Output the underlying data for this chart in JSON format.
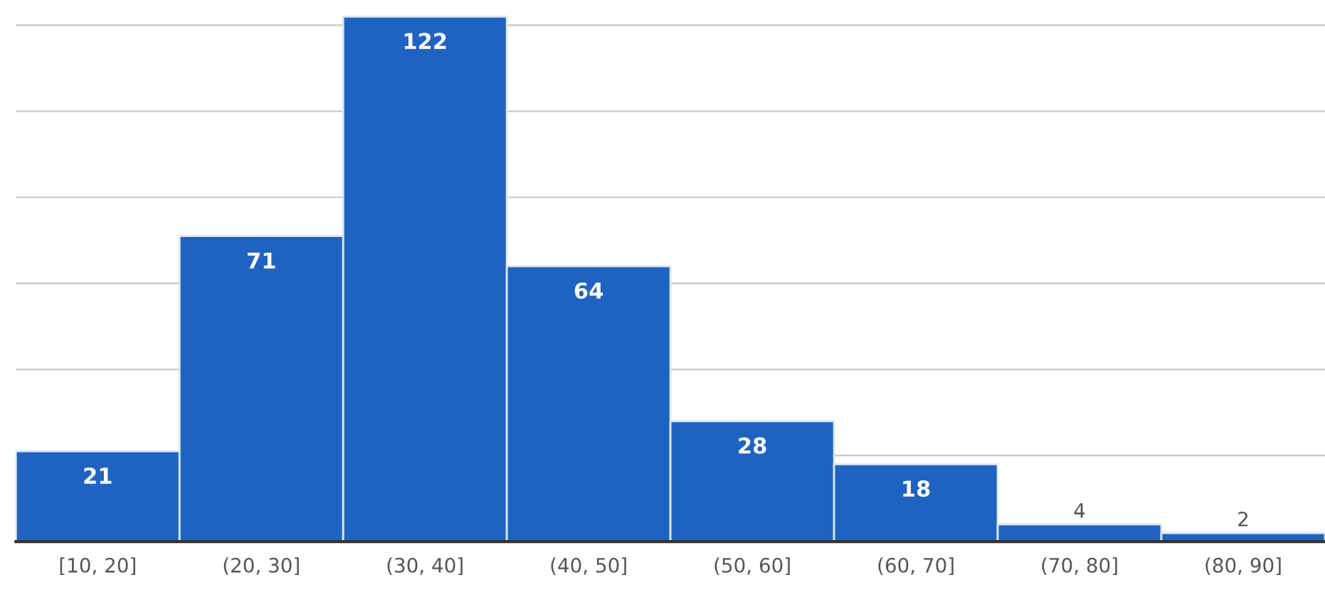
{
  "chart_data": {
    "type": "bar",
    "categories": [
      "[10, 20]",
      "(20, 30]",
      "(30, 40]",
      "(40, 50]",
      "(50, 60]",
      "(60, 70]",
      "(70, 80]",
      "(80, 90]"
    ],
    "values": [
      21,
      71,
      122,
      64,
      28,
      18,
      4,
      2
    ],
    "color": "#1f63c2",
    "data_labels": true,
    "ylim": [
      0,
      123
    ],
    "yticks": [
      {
        "value": 20,
        "label": null
      },
      {
        "value": 40,
        "label": null
      },
      {
        "value": 60,
        "label": null
      },
      {
        "value": 80,
        "label": null
      },
      {
        "value": 100,
        "label": null
      },
      {
        "value": 120,
        "label": null
      }
    ],
    "grid": "y",
    "tick_labels": "x"
  }
}
